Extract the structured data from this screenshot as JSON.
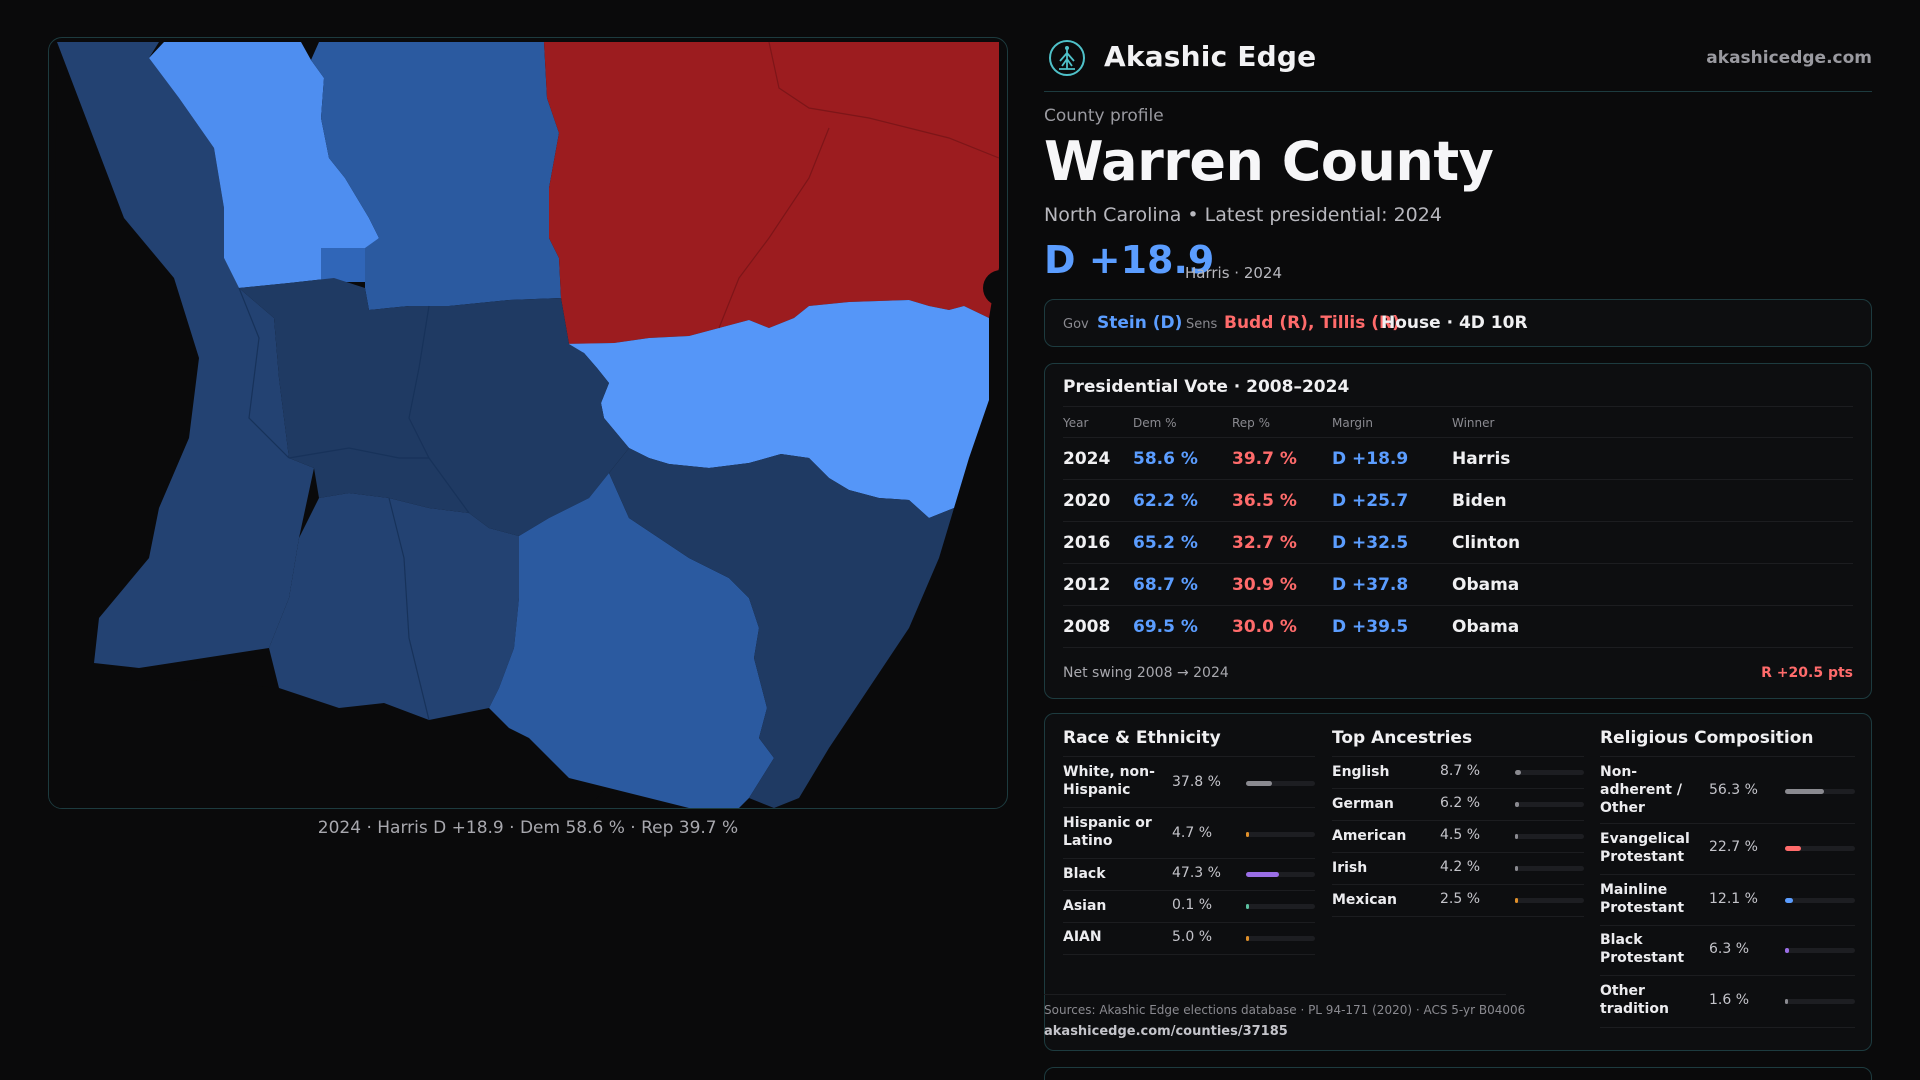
{
  "map": {
    "caption": "2024 · Harris D +18.9 · Dem 58.6 % · Rep 39.7 %",
    "colors": {
      "dem_light": "#5596f8",
      "dem_mid": "#3d7fe6",
      "dem_dark": "#1f3a63",
      "dem_deep": "#2a5599",
      "rep": "#9c1c1f"
    }
  },
  "header": {
    "brand": "Akashic Edge",
    "url": "akashicedge.com",
    "logo_icon": "tree-of-life-icon"
  },
  "profile": {
    "eyebrow": "County profile",
    "title": "Warren County",
    "subtitle": "North Carolina • Latest presidential: 2024",
    "margin": "D +18.9",
    "margin_note": "Harris · 2024"
  },
  "officials": {
    "gov_label": "Gov",
    "gov_value": "Stein (D)",
    "sens_label": "Sens",
    "sens_value": "Budd (R), Tillis (R)",
    "house_value": "House · 4D 10R"
  },
  "votes": {
    "title": "Presidential Vote · 2008–2024",
    "headers": {
      "year": "Year",
      "dem": "Dem %",
      "rep": "Rep %",
      "margin": "Margin",
      "winner": "Winner"
    },
    "rows": [
      {
        "year": "2024",
        "dem": "58.6 %",
        "rep": "39.7 %",
        "margin": "D +18.9",
        "winner": "Harris"
      },
      {
        "year": "2020",
        "dem": "62.2 %",
        "rep": "36.5 %",
        "margin": "D +25.7",
        "winner": "Biden"
      },
      {
        "year": "2016",
        "dem": "65.2 %",
        "rep": "32.7 %",
        "margin": "D +32.5",
        "winner": "Clinton"
      },
      {
        "year": "2012",
        "dem": "68.7 %",
        "rep": "30.9 %",
        "margin": "D +37.8",
        "winner": "Obama"
      },
      {
        "year": "2008",
        "dem": "69.5 %",
        "rep": "30.0 %",
        "margin": "D +39.5",
        "winner": "Obama"
      }
    ],
    "swing_label": "Net swing 2008 → 2024",
    "swing_value": "R +20.5 pts"
  },
  "race": {
    "title": "Race & Ethnicity",
    "items": [
      {
        "name": "White, non-Hispanic",
        "pct": "37.8 %",
        "value": 37.8,
        "color": "#8a8a90"
      },
      {
        "name": "Hispanic or Latino",
        "pct": "4.7 %",
        "value": 4.7,
        "color": "#e0902a"
      },
      {
        "name": "Black",
        "pct": "47.3 %",
        "value": 47.3,
        "color": "#9a6ee6"
      },
      {
        "name": "Asian",
        "pct": "0.1 %",
        "value": 0.1,
        "color": "#5bc0a0"
      },
      {
        "name": "AIAN",
        "pct": "5.0 %",
        "value": 5.0,
        "color": "#e0902a"
      }
    ]
  },
  "ancestry": {
    "title": "Top Ancestries",
    "items": [
      {
        "name": "English",
        "pct": "8.7 %",
        "value": 8.7,
        "color": "#8a8a90"
      },
      {
        "name": "German",
        "pct": "6.2 %",
        "value": 6.2,
        "color": "#8a8a90"
      },
      {
        "name": "American",
        "pct": "4.5 %",
        "value": 4.5,
        "color": "#8a8a90"
      },
      {
        "name": "Irish",
        "pct": "4.2 %",
        "value": 4.2,
        "color": "#8a8a90"
      },
      {
        "name": "Mexican",
        "pct": "2.5 %",
        "value": 2.5,
        "color": "#e0902a"
      }
    ]
  },
  "religion": {
    "title": "Religious Composition",
    "items": [
      {
        "name": "Non-adherent / Other",
        "pct": "56.3 %",
        "value": 56.3,
        "color": "#8a8a90"
      },
      {
        "name": "Evangelical Protestant",
        "pct": "22.7 %",
        "value": 22.7,
        "color": "#ff6b6b"
      },
      {
        "name": "Mainline Protestant",
        "pct": "12.1 %",
        "value": 12.1,
        "color": "#5b9dff"
      },
      {
        "name": "Black Protestant",
        "pct": "6.3 %",
        "value": 6.3,
        "color": "#9a6ee6"
      },
      {
        "name": "Other tradition",
        "pct": "1.6 %",
        "value": 1.6,
        "color": "#8a8a90"
      }
    ]
  },
  "footer": {
    "sources": "Sources: Akashic Edge elections database · PL 94-171 (2020) · ACS 5-yr B04006",
    "url": "akashicedge.com/counties/37185"
  }
}
